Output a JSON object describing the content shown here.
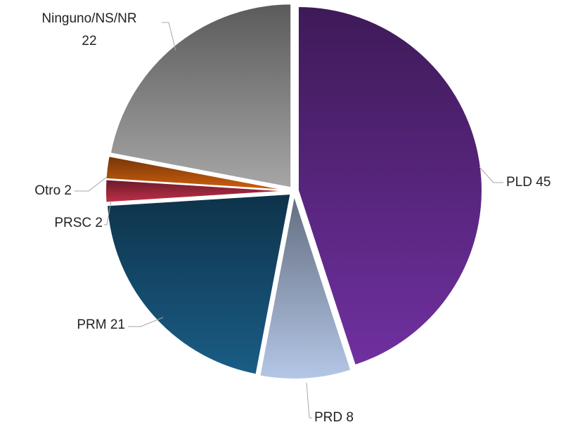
{
  "chart_data": {
    "type": "pie",
    "categories": [
      "PLD",
      "PRD",
      "PRM",
      "PRSC",
      "Otro",
      "Ninguno/NS/NR"
    ],
    "values": [
      45,
      8,
      21,
      2,
      2,
      22
    ],
    "colors": [
      "#7030a0",
      "#b4c7e7",
      "#1a5d86",
      "#c0304a",
      "#d0600f",
      "#a6a6a6"
    ]
  }
}
